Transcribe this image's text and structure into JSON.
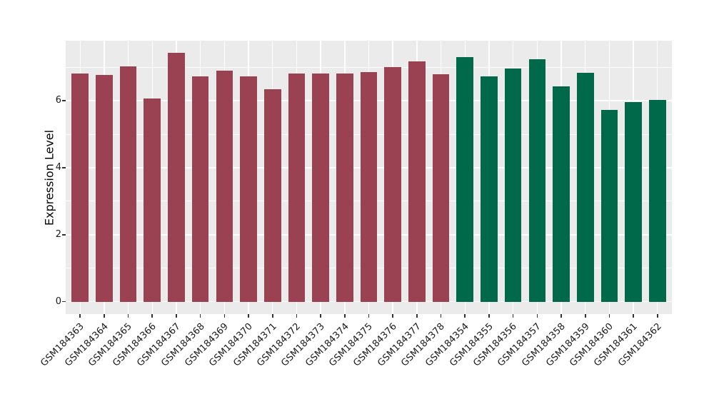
{
  "chart_data": {
    "type": "bar",
    "title": "",
    "xlabel": "",
    "ylabel": "Expression Level",
    "categories": [
      "GSM184363",
      "GSM184364",
      "GSM184365",
      "GSM184366",
      "GSM184367",
      "GSM184368",
      "GSM184369",
      "GSM184370",
      "GSM184371",
      "GSM184372",
      "GSM184373",
      "GSM184374",
      "GSM184375",
      "GSM184376",
      "GSM184377",
      "GSM184378",
      "GSM184354",
      "GSM184355",
      "GSM184356",
      "GSM184357",
      "GSM184358",
      "GSM184359",
      "GSM184360",
      "GSM184361",
      "GSM184362"
    ],
    "values": [
      6.81,
      6.77,
      7.03,
      6.07,
      7.43,
      6.72,
      6.89,
      6.73,
      6.34,
      6.8,
      6.81,
      6.8,
      6.85,
      7.0,
      7.18,
      6.79,
      7.3,
      6.73,
      6.96,
      7.23,
      6.42,
      6.83,
      5.73,
      5.95,
      6.03
    ],
    "bar_colors": [
      "#9B4252",
      "#9B4252",
      "#9B4252",
      "#9B4252",
      "#9B4252",
      "#9B4252",
      "#9B4252",
      "#9B4252",
      "#9B4252",
      "#9B4252",
      "#9B4252",
      "#9B4252",
      "#9B4252",
      "#9B4252",
      "#9B4252",
      "#9B4252",
      "#006949",
      "#006949",
      "#006949",
      "#006949",
      "#006949",
      "#006949",
      "#006949",
      "#006949",
      "#006949"
    ],
    "group_colors": {
      "left_group": "#9B4252",
      "right_group": "#006949"
    },
    "yticks": [
      0,
      2,
      4,
      6
    ],
    "yticks_minor": [
      1,
      3,
      5,
      7
    ],
    "ylim": [
      0,
      7.5
    ],
    "ylim_display": [
      -0.37,
      7.79
    ],
    "grid": true,
    "legend": false,
    "panel_bg": "#EBEBEB",
    "grid_color": "#FFFFFF",
    "text_color": "#1a1a1a",
    "tick_color": "#333333"
  }
}
